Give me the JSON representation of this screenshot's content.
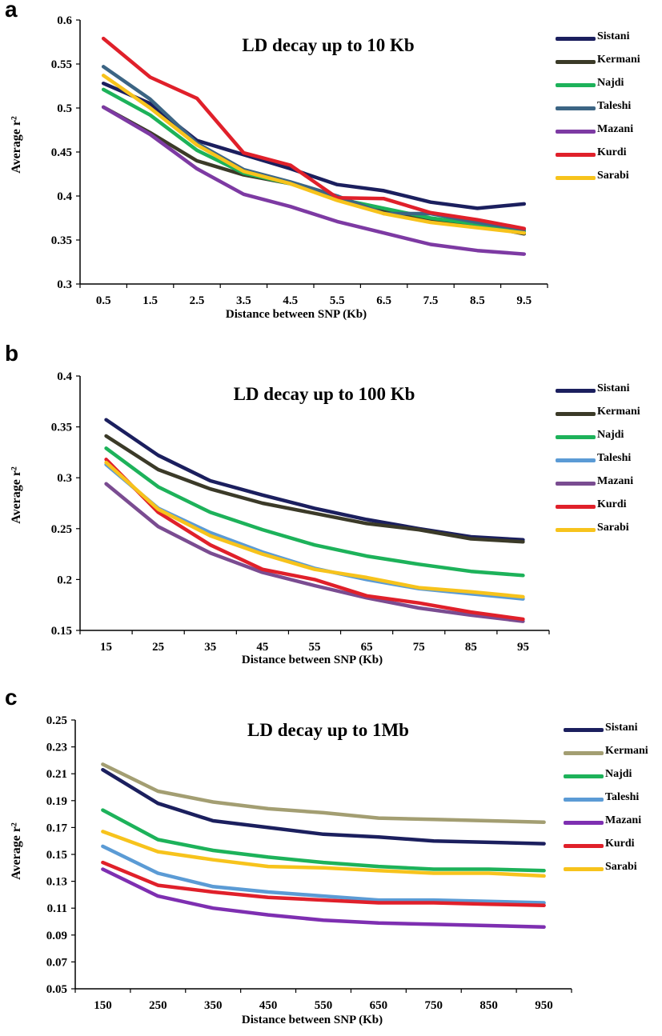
{
  "panels": [
    {
      "id": "a",
      "letter": "a"
    },
    {
      "id": "b",
      "letter": "b"
    },
    {
      "id": "c",
      "letter": "c"
    }
  ],
  "chart_data": [
    {
      "type": "line",
      "title": "LD decay up to 10 Kb",
      "xlabel": "Distance between SNP (Kb)",
      "ylabel": "Average r²",
      "categories": [
        "0.5",
        "1.5",
        "2.5",
        "3.5",
        "4.5",
        "5.5",
        "6.5",
        "7.5",
        "8.5",
        "9.5"
      ],
      "ylim": [
        0.3,
        0.6
      ],
      "yticks": [
        "0.3",
        "0.35",
        "0.4",
        "0.45",
        "0.5",
        "0.55",
        "0.6"
      ],
      "legend_position": "top-right",
      "series": [
        {
          "name": "Sistani",
          "color": "#1b1f5e",
          "values": [
            0.528,
            0.505,
            0.463,
            0.447,
            0.431,
            0.413,
            0.406,
            0.393,
            0.386,
            0.391
          ]
        },
        {
          "name": "Kermani",
          "color": "#3b3a28",
          "values": [
            0.501,
            0.472,
            0.44,
            0.424,
            0.414,
            0.398,
            0.382,
            0.373,
            0.367,
            0.357
          ]
        },
        {
          "name": "Najdi",
          "color": "#1db25a",
          "values": [
            0.521,
            0.492,
            0.452,
            0.426,
            0.414,
            0.397,
            0.386,
            0.375,
            0.368,
            0.36
          ]
        },
        {
          "name": "Taleshi",
          "color": "#3c6584",
          "values": [
            0.547,
            0.51,
            0.46,
            0.43,
            0.416,
            0.4,
            0.38,
            0.38,
            0.37,
            0.362
          ]
        },
        {
          "name": "Mazani",
          "color": "#7d3aa3",
          "values": [
            0.501,
            0.47,
            0.431,
            0.402,
            0.388,
            0.371,
            0.358,
            0.345,
            0.338,
            0.334
          ]
        },
        {
          "name": "Kurdi",
          "color": "#e0202a",
          "values": [
            0.579,
            0.535,
            0.511,
            0.449,
            0.435,
            0.398,
            0.397,
            0.381,
            0.373,
            0.363
          ]
        },
        {
          "name": "Sarabi",
          "color": "#f7c31c",
          "values": [
            0.537,
            0.5,
            0.458,
            0.428,
            0.414,
            0.395,
            0.38,
            0.37,
            0.364,
            0.358
          ]
        }
      ]
    },
    {
      "type": "line",
      "title": "LD decay up to 100 Kb",
      "xlabel": "Distance between SNP (Kb)",
      "ylabel": "Average r²",
      "categories": [
        "15",
        "25",
        "35",
        "45",
        "55",
        "65",
        "75",
        "85",
        "95"
      ],
      "ylim": [
        0.15,
        0.4
      ],
      "yticks": [
        "0.15",
        "0.2",
        "0.25",
        "0.3",
        "0.35",
        "0.4"
      ],
      "legend_position": "top-right",
      "series": [
        {
          "name": "Sistani",
          "color": "#1b1f5e",
          "values": [
            0.357,
            0.322,
            0.297,
            0.283,
            0.27,
            0.259,
            0.25,
            0.242,
            0.239
          ]
        },
        {
          "name": "Kermani",
          "color": "#3b3a28",
          "values": [
            0.341,
            0.308,
            0.289,
            0.275,
            0.265,
            0.255,
            0.249,
            0.24,
            0.237
          ]
        },
        {
          "name": "Najdi",
          "color": "#1db25a",
          "values": [
            0.329,
            0.291,
            0.266,
            0.249,
            0.234,
            0.223,
            0.215,
            0.208,
            0.204
          ]
        },
        {
          "name": "Taleshi",
          "color": "#5b9bd5",
          "values": [
            0.313,
            0.27,
            0.246,
            0.227,
            0.211,
            0.2,
            0.191,
            0.186,
            0.181
          ]
        },
        {
          "name": "Mazani",
          "color": "#7a4c91",
          "values": [
            0.294,
            0.252,
            0.226,
            0.207,
            0.194,
            0.182,
            0.172,
            0.165,
            0.159
          ]
        },
        {
          "name": "Kurdi",
          "color": "#e0202a",
          "values": [
            0.318,
            0.266,
            0.234,
            0.21,
            0.2,
            0.184,
            0.177,
            0.168,
            0.161
          ]
        },
        {
          "name": "Sarabi",
          "color": "#f7c31c",
          "values": [
            0.315,
            0.269,
            0.243,
            0.225,
            0.21,
            0.202,
            0.192,
            0.188,
            0.183
          ]
        }
      ]
    },
    {
      "type": "line",
      "title": "LD decay up to 1Mb",
      "xlabel": "Distance between SNP (Kb)",
      "ylabel": "Average r²",
      "categories": [
        "150",
        "250",
        "350",
        "450",
        "550",
        "650",
        "750",
        "850",
        "950"
      ],
      "ylim": [
        0.05,
        0.25
      ],
      "yticks": [
        "0.05",
        "0.07",
        "0.09",
        "0.11",
        "0.13",
        "0.15",
        "0.17",
        "0.19",
        "0.21",
        "0.23",
        "0.25"
      ],
      "legend_position": "top-right",
      "series": [
        {
          "name": "Sistani",
          "color": "#1b1f5e",
          "values": [
            0.213,
            0.188,
            0.175,
            0.17,
            0.165,
            0.163,
            0.16,
            0.159,
            0.158
          ]
        },
        {
          "name": "Kermani",
          "color": "#a39e72",
          "values": [
            0.217,
            0.197,
            0.189,
            0.184,
            0.181,
            0.177,
            0.176,
            0.175,
            0.174
          ]
        },
        {
          "name": "Najdi",
          "color": "#1db25a",
          "values": [
            0.183,
            0.161,
            0.153,
            0.148,
            0.144,
            0.141,
            0.139,
            0.139,
            0.138
          ]
        },
        {
          "name": "Taleshi",
          "color": "#5b9bd5",
          "values": [
            0.156,
            0.136,
            0.126,
            0.122,
            0.119,
            0.116,
            0.116,
            0.115,
            0.114
          ]
        },
        {
          "name": "Mazani",
          "color": "#7e2fb1",
          "values": [
            0.139,
            0.119,
            0.11,
            0.105,
            0.101,
            0.099,
            0.098,
            0.097,
            0.096
          ]
        },
        {
          "name": "Kurdi",
          "color": "#e0202a",
          "values": [
            0.144,
            0.127,
            0.122,
            0.118,
            0.116,
            0.114,
            0.114,
            0.113,
            0.112
          ]
        },
        {
          "name": "Sarabi",
          "color": "#f7c31c",
          "values": [
            0.167,
            0.152,
            0.146,
            0.141,
            0.14,
            0.138,
            0.136,
            0.136,
            0.134
          ]
        }
      ]
    }
  ]
}
